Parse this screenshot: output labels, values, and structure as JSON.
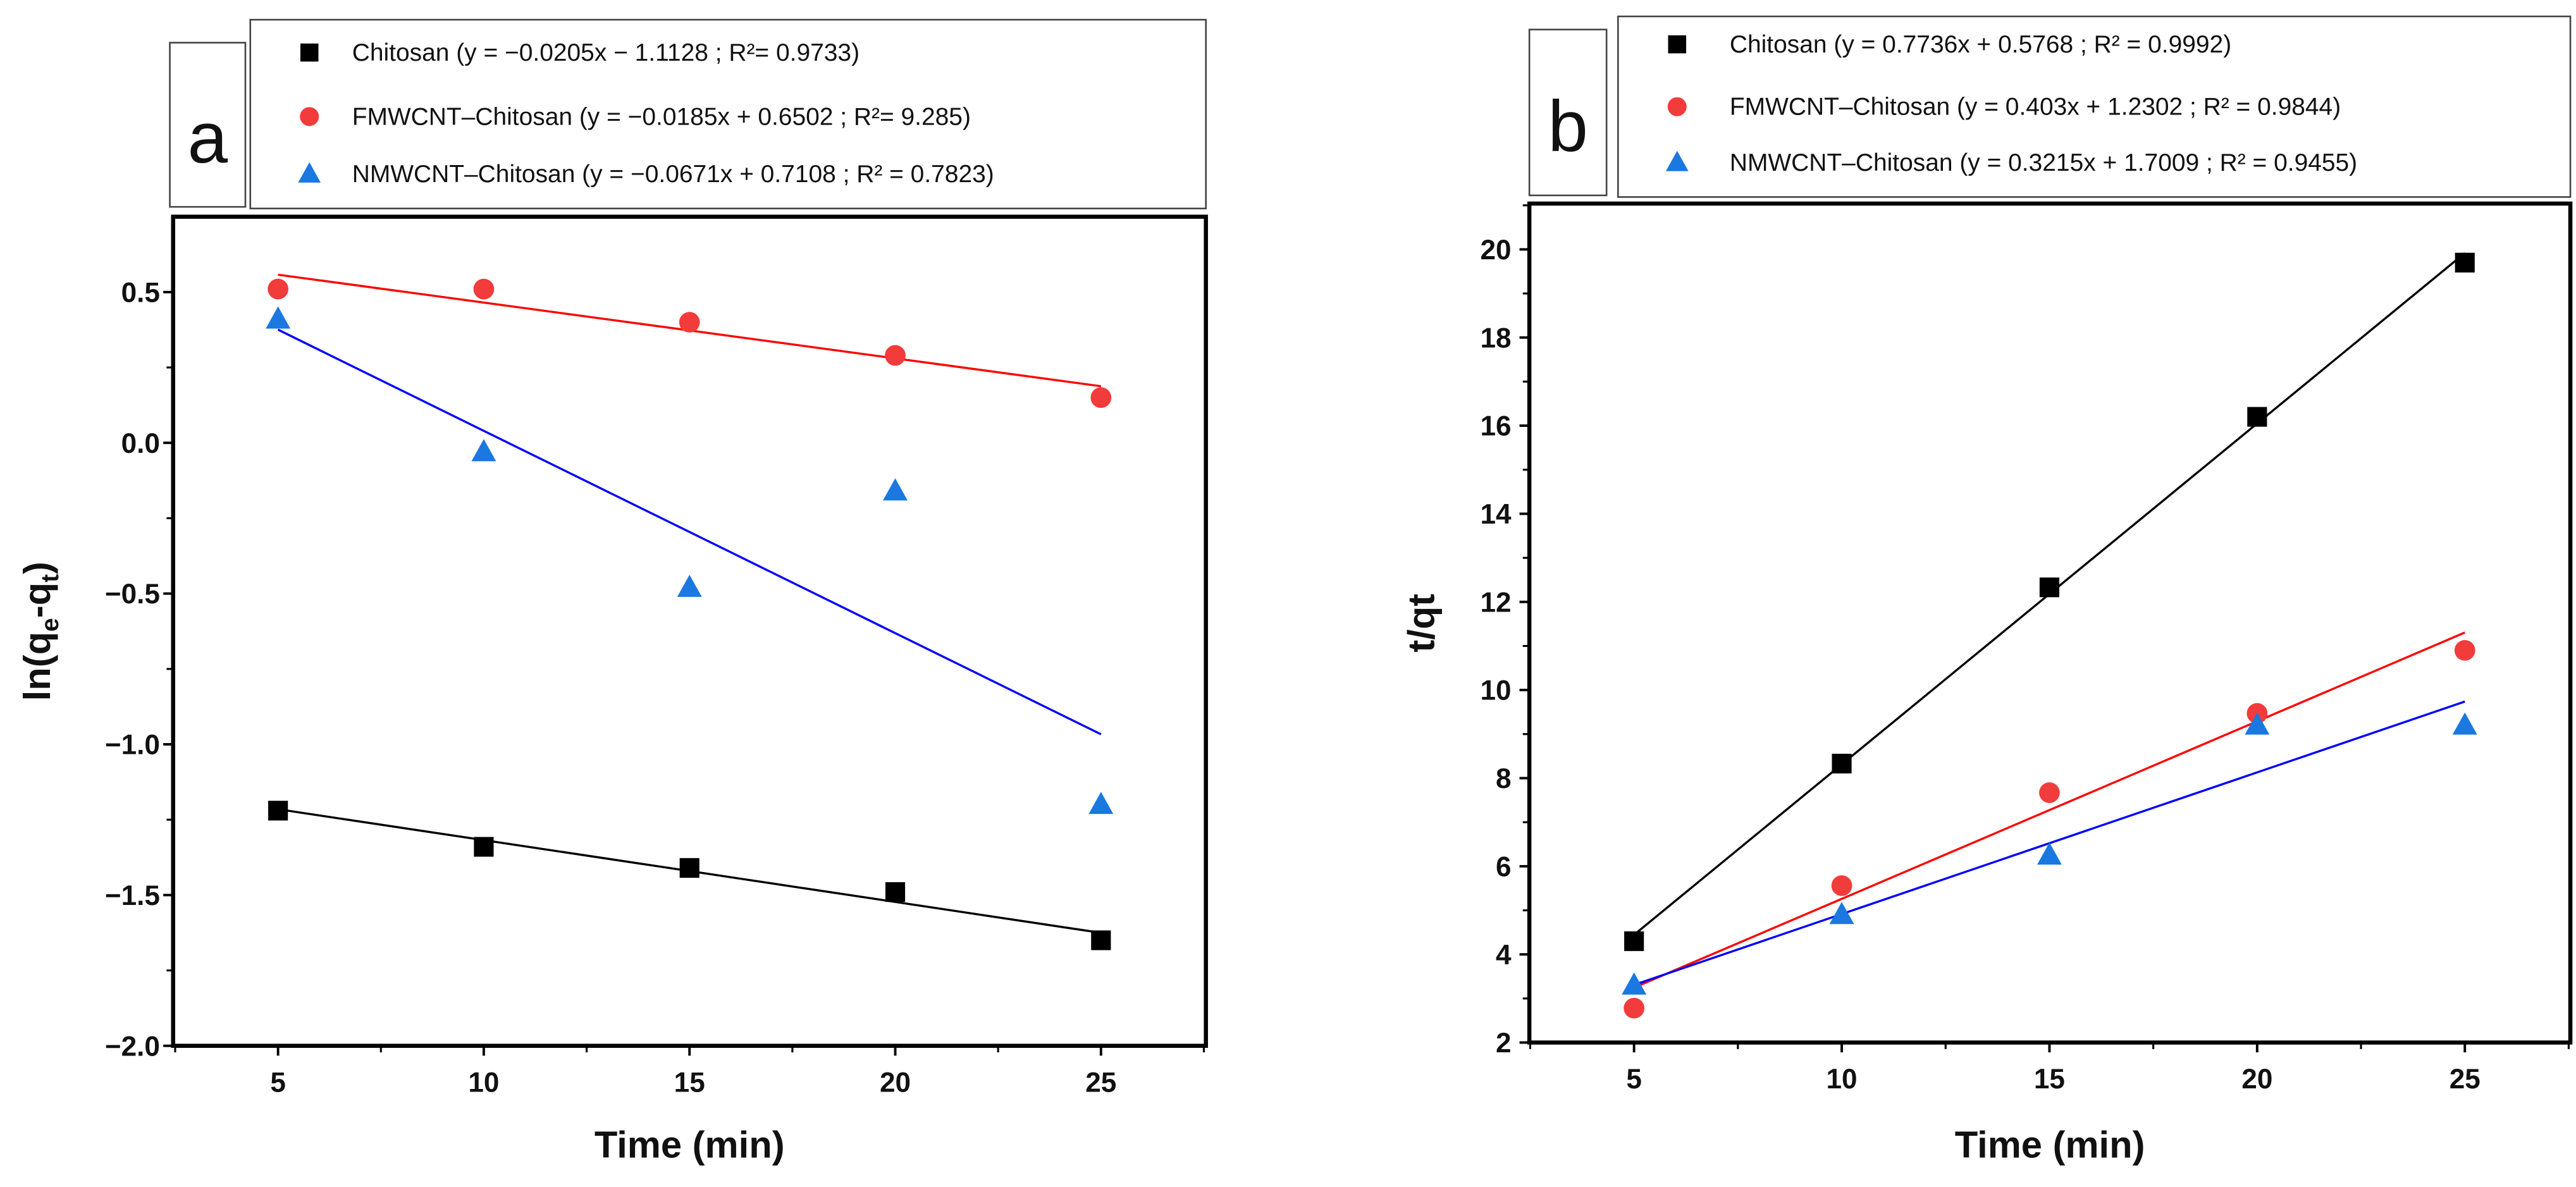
{
  "chart_data": [
    {
      "type": "scatter",
      "panel_label": "a",
      "xlabel": "Time (min)",
      "ylabel": "ln(qe-qt)",
      "ylabel_parts": {
        "base": "ln(q",
        "sub1": "e",
        "mid": "-q",
        "sub2": "t",
        "end": ")"
      },
      "xlim": [
        2.45,
        27.55
      ],
      "ylim": [
        -2.0,
        0.75
      ],
      "xticks": [
        5,
        10,
        15,
        20,
        25
      ],
      "xtick_labels": [
        "5",
        "10",
        "15",
        "20",
        "25"
      ],
      "yticks": [
        -2.0,
        -1.5,
        -1.0,
        -0.5,
        0.0,
        0.5
      ],
      "ytick_labels": [
        "−2.0",
        "−1.5",
        "−1.0",
        "−0.5",
        "0.0",
        "0.5"
      ],
      "grid": false,
      "legend_placement": "top",
      "x": [
        5,
        10,
        15,
        20,
        25
      ],
      "series": [
        {
          "name": "Chitosan",
          "legend": "Chitosan (y = −0.0205x − 1.1128 ; R²= 0.9733)",
          "marker": "square",
          "color": "#000000",
          "line_color": "#000000",
          "values": [
            -1.22,
            -1.34,
            -1.41,
            -1.49,
            -1.65
          ],
          "fit": {
            "slope": -0.0205,
            "intercept": -1.1128
          }
        },
        {
          "name": "FMWCNT–Chitosan",
          "legend": "FMWCNT–Chitosan (y = −0.0185x + 0.6502 ; R²= 9.285)",
          "marker": "circle",
          "color": "#f23b3b",
          "line_color": "#ff0000",
          "values": [
            0.51,
            0.51,
            0.4,
            0.29,
            0.15
          ],
          "fit": {
            "slope": -0.0185,
            "intercept": 0.6502
          }
        },
        {
          "name": "NMWCNT–Chitosan",
          "legend": "NMWCNT–Chitosan (y = −0.0671x + 0.7108 ; R² = 0.7823)",
          "marker": "triangle",
          "color": "#1a78e0",
          "line_color": "#0000ff",
          "values": [
            0.41,
            -0.03,
            -0.48,
            -0.16,
            -1.2
          ],
          "fit": {
            "slope": -0.0671,
            "intercept": 0.7108
          }
        }
      ]
    },
    {
      "type": "scatter",
      "panel_label": "b",
      "xlabel": "Time (min)",
      "ylabel": "t/qt",
      "xlim": [
        2.48,
        27.54
      ],
      "ylim": [
        2,
        21.04
      ],
      "xticks": [
        5,
        10,
        15,
        20,
        25
      ],
      "xtick_labels": [
        "5",
        "10",
        "15",
        "20",
        "25"
      ],
      "yticks": [
        2,
        4,
        6,
        8,
        10,
        12,
        14,
        16,
        18,
        20
      ],
      "ytick_labels": [
        "2",
        "4",
        "6",
        "8",
        "10",
        "12",
        "14",
        "16",
        "18",
        "20"
      ],
      "grid": false,
      "legend_placement": "top",
      "x": [
        5,
        10,
        15,
        20,
        25
      ],
      "series": [
        {
          "name": "Chitosan",
          "legend": "Chitosan (y = 0.7736x + 0.5768 ; R² = 0.9992)",
          "marker": "square",
          "color": "#000000",
          "line_color": "#000000",
          "values": [
            4.3,
            8.33,
            12.33,
            16.2,
            19.7
          ],
          "fit": {
            "slope": 0.7736,
            "intercept": 0.5768
          }
        },
        {
          "name": "FMWCNT–Chitosan",
          "legend": "FMWCNT–Chitosan  (y = 0.403x + 1.2302 ; R² = 0.9844)",
          "marker": "circle",
          "color": "#f23b3b",
          "line_color": "#ff0000",
          "values": [
            2.78,
            5.56,
            7.67,
            9.47,
            10.9
          ],
          "fit": {
            "slope": 0.403,
            "intercept": 1.2302
          }
        },
        {
          "name": "NMWCNT–Chitosan",
          "legend": "NMWCNT–Chitosan  (y = 0.3215x + 1.7009 ; R² = 0.9455)",
          "marker": "triangle",
          "color": "#1a78e0",
          "line_color": "#0000ff",
          "values": [
            3.3,
            4.9,
            6.25,
            9.2,
            9.2
          ],
          "fit": {
            "slope": 0.3215,
            "intercept": 1.7009
          }
        }
      ]
    }
  ]
}
